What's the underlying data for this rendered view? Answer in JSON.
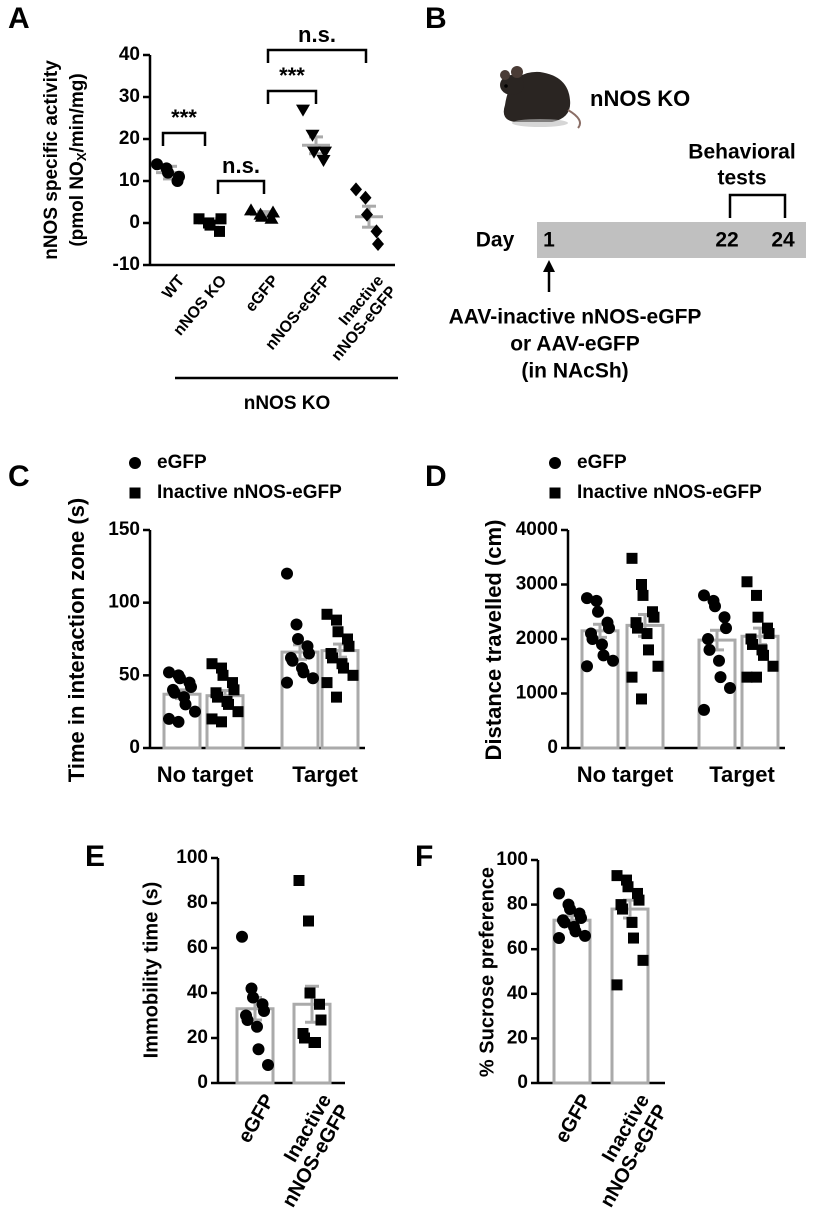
{
  "chart_data": [
    {
      "type": "dot",
      "panel": "A",
      "y_label": [
        "nNOS specific activity",
        "(pmol NO",
        "X",
        "/min/mg)"
      ],
      "categories": [
        "WT",
        "nNOS KO",
        "eGFP",
        "nNOS-eGFP",
        "Inactive nNOS-eGFP"
      ],
      "values": [
        12,
        0,
        2,
        18.5,
        1.5
      ],
      "errors": [
        1.5,
        1,
        0.7,
        2,
        2.5
      ],
      "points": [
        [
          14,
          13,
          12,
          10,
          11
        ],
        [
          1,
          0,
          -0.5,
          -2,
          1
        ],
        [
          3,
          2,
          1.5,
          1,
          2.5
        ],
        [
          27,
          21,
          17,
          15,
          17
        ],
        [
          8,
          6,
          2,
          -2,
          -5
        ]
      ],
      "markers": [
        "circle",
        "square",
        "triangle",
        "triangle-down",
        "diamond"
      ],
      "color": "#000000",
      "mean_color": "#aaaaaa",
      "ylim": [
        -10,
        40
      ],
      "yticks": [
        -10,
        0,
        10,
        20,
        30,
        40
      ],
      "annotations": [
        "***",
        "n.s.",
        "***",
        "n.s."
      ],
      "group_label": "nNOS KO"
    },
    {
      "type": "bar",
      "panel": "C",
      "y_label": "Time in interaction zone (s)",
      "categories": [
        "No target",
        "Target"
      ],
      "series": [
        {
          "name": "eGFP",
          "marker": "circle",
          "values": [
            37,
            66
          ],
          "errors": [
            3,
            5
          ],
          "points": [
            [
              52,
              50,
              48,
              45,
              42,
              40,
              38,
              35,
              30,
              25,
              20,
              18
            ],
            [
              120,
              85,
              75,
              70,
              65,
              62,
              60,
              55,
              52,
              48,
              45
            ]
          ]
        },
        {
          "name": "Inactive nNOS-eGFP",
          "marker": "square",
          "values": [
            36,
            67
          ],
          "errors": [
            3.5,
            4.5
          ],
          "points": [
            [
              58,
              55,
              50,
              45,
              40,
              38,
              35,
              32,
              30,
              25,
              20,
              18
            ],
            [
              92,
              88,
              80,
              75,
              70,
              65,
              62,
              58,
              55,
              50,
              45,
              35
            ]
          ]
        }
      ],
      "ylim": [
        0,
        150
      ],
      "yticks": [
        0,
        50,
        100,
        150
      ],
      "color": "#000000",
      "bar_color": "#aaaaaa"
    },
    {
      "type": "bar",
      "panel": "D",
      "y_label": "Distance travelled (cm)",
      "categories": [
        "No target",
        "Target"
      ],
      "series": [
        {
          "name": "eGFP",
          "marker": "circle",
          "values": [
            2150,
            1980
          ],
          "errors": [
            120,
            180
          ],
          "points": [
            [
              2750,
              2700,
              2500,
              2300,
              2200,
              2100,
              2000,
              1900,
              1700,
              1600,
              1500
            ],
            [
              2800,
              2700,
              2600,
              2400,
              2200,
              2000,
              1800,
              1600,
              1300,
              1100,
              700
            ]
          ]
        },
        {
          "name": "Inactive nNOS-eGFP",
          "marker": "square",
          "values": [
            2250,
            2050
          ],
          "errors": [
            200,
            150
          ],
          "points": [
            [
              3480,
              3000,
              2800,
              2500,
              2400,
              2300,
              2200,
              2100,
              1800,
              1500,
              1300,
              900
            ],
            [
              3050,
              2800,
              2400,
              2200,
              2100,
              2000,
              1900,
              1800,
              1700,
              1500,
              1300,
              1300
            ]
          ]
        }
      ],
      "ylim": [
        0,
        4000
      ],
      "yticks": [
        0,
        1000,
        2000,
        3000,
        4000
      ],
      "color": "#000000",
      "bar_color": "#aaaaaa"
    },
    {
      "type": "bar",
      "panel": "E",
      "y_label": "Immobility time (s)",
      "categories": [
        "eGFP",
        "Inactive nNOS-eGFP"
      ],
      "values": [
        33,
        35
      ],
      "errors": [
        5,
        8
      ],
      "points": [
        [
          65,
          42,
          38,
          35,
          32,
          30,
          28,
          25,
          15,
          8
        ],
        [
          90,
          72,
          40,
          35,
          28,
          22,
          20,
          18,
          18
        ]
      ],
      "markers": [
        "circle",
        "square"
      ],
      "ylim": [
        0,
        100
      ],
      "yticks": [
        0,
        20,
        40,
        60,
        80,
        100
      ],
      "color": "#000000",
      "bar_color": "#aaaaaa"
    },
    {
      "type": "bar",
      "panel": "F",
      "y_label": "% Sucrose preference",
      "categories": [
        "eGFP",
        "Inactive nNOS-eGFP"
      ],
      "values": [
        73,
        78
      ],
      "errors": [
        2,
        4
      ],
      "points": [
        [
          85,
          80,
          78,
          76,
          74,
          73,
          72,
          70,
          68,
          66,
          65
        ],
        [
          93,
          91,
          88,
          85,
          82,
          80,
          78,
          72,
          65,
          55,
          44
        ]
      ],
      "markers": [
        "circle",
        "square"
      ],
      "ylim": [
        0,
        100
      ],
      "yticks": [
        0,
        20,
        40,
        60,
        80,
        100
      ],
      "color": "#000000",
      "bar_color": "#aaaaaa"
    }
  ],
  "diagram_b": {
    "panel": "B",
    "mouse_label": "nNOS KO",
    "test_label": [
      "Behavioral",
      "tests"
    ],
    "day_label": "Day",
    "days": [
      1,
      22,
      24
    ],
    "injection_label": [
      "AAV-inactive nNOS-eGFP",
      "or AAV-eGFP",
      "(in NAcSh)"
    ]
  }
}
